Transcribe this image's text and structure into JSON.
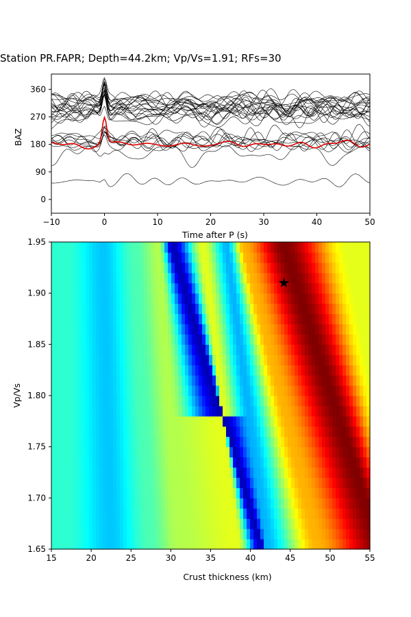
{
  "title": "Station PR.FAPR; Depth=44.2km; Vp/Vs=1.91; RFs=30",
  "chart_data": [
    {
      "type": "line",
      "xlabel": "Time after P (s)",
      "ylabel": "BAZ",
      "xlim": [
        -10,
        50
      ],
      "ylim": [
        -45,
        410
      ],
      "xticks": [
        "−10",
        "0",
        "10",
        "20",
        "30",
        "40",
        "50"
      ],
      "xtick_values": [
        -10,
        0,
        10,
        20,
        30,
        40,
        50
      ],
      "yticks": [
        "0",
        "90",
        "180",
        "270",
        "360"
      ],
      "ytick_values": [
        0,
        90,
        180,
        270,
        360
      ],
      "n_traces": 30,
      "trace_baz": [
        60,
        150,
        178,
        183,
        186,
        190,
        193,
        196,
        200,
        205,
        262,
        270,
        275,
        280,
        284,
        287,
        290,
        293,
        296,
        300,
        303,
        306,
        309,
        312,
        315,
        318,
        321,
        324,
        330,
        336
      ],
      "stack_baz": 180,
      "pulse_time": 0,
      "trace_color": "#000000",
      "stack_color": "#dd0000"
    },
    {
      "type": "heatmap",
      "xlabel": "Crust thickness (km)",
      "ylabel": "Vp/Vs",
      "xlim": [
        15,
        55
      ],
      "ylim": [
        1.65,
        1.95
      ],
      "xticks": [
        "15",
        "20",
        "25",
        "30",
        "35",
        "40",
        "45",
        "50",
        "55"
      ],
      "xtick_values": [
        15,
        20,
        25,
        30,
        35,
        40,
        45,
        50,
        55
      ],
      "yticks": [
        "1.65",
        "1.70",
        "1.75",
        "1.80",
        "1.85",
        "1.90",
        "1.95"
      ],
      "ytick_values": [
        1.65,
        1.7,
        1.75,
        1.8,
        1.85,
        1.9,
        1.95
      ],
      "colormap": "jet",
      "best_fit": {
        "thickness": 44.2,
        "vpvs": 1.91,
        "marker": "star"
      },
      "bands": [
        {
          "h_at_1_95": 17.0,
          "h_at_1_65": 17.0,
          "level": 0.42
        },
        {
          "h_at_1_95": 21.5,
          "h_at_1_65": 22.5,
          "level": 0.32
        },
        {
          "h_at_1_95": 25.5,
          "h_at_1_65": 27.5,
          "level": 0.45
        },
        {
          "h_at_1_95": 28.5,
          "h_at_1_65": 31.0,
          "level": 0.55
        },
        {
          "h_at_1_95": 30.0,
          "h_at_1_65": 41.5,
          "level": 0.05
        },
        {
          "h_at_1_95": 34.0,
          "h_at_1_65": 38.5,
          "level": 0.6
        },
        {
          "h_at_1_95": 37.0,
          "h_at_1_65": 42.0,
          "level": 0.3
        },
        {
          "h_at_1_95": 39.0,
          "h_at_1_65": 48.5,
          "level": 0.7
        },
        {
          "h_at_1_95": 44.0,
          "h_at_1_65": 56.5,
          "level": 1.0
        },
        {
          "h_at_1_95": 52.0,
          "h_at_1_65": 59.0,
          "level": 0.6
        }
      ]
    }
  ]
}
